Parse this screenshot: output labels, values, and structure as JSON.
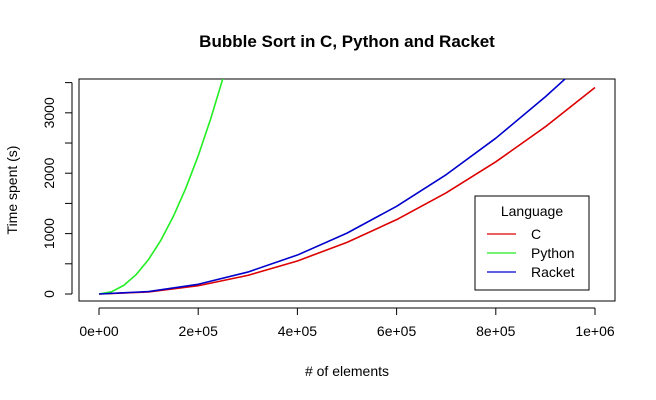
{
  "chart_data": {
    "type": "line",
    "title": "Bubble Sort in C, Python and Racket",
    "xlabel": "# of elements",
    "ylabel": "Time spent (s)",
    "xlim": [
      0,
      1000000
    ],
    "ylim": [
      0,
      3560
    ],
    "x_ticks": [
      0,
      200000,
      400000,
      600000,
      800000,
      1000000
    ],
    "x_tick_labels": [
      "0e+00",
      "2e+05",
      "4e+05",
      "6e+05",
      "8e+05",
      "1e+06"
    ],
    "y_ticks": [
      0,
      1000,
      2000,
      3000
    ],
    "y_tick_labels": [
      "0",
      "1000",
      "2000",
      "3000"
    ],
    "grid": false,
    "legend": {
      "title": "Language",
      "position": "bottom-right"
    },
    "series": [
      {
        "name": "C",
        "color": "#dd0000",
        "x": [
          0,
          100000,
          200000,
          300000,
          400000,
          500000,
          600000,
          700000,
          800000,
          900000,
          1000000
        ],
        "y": [
          0,
          34,
          137,
          308,
          547,
          855,
          1231,
          1676,
          2189,
          2770,
          3420
        ]
      },
      {
        "name": "Python",
        "color": "#22ee22",
        "x": [
          0,
          25000,
          50000,
          75000,
          100000,
          125000,
          150000,
          175000,
          200000,
          225000,
          250000
        ],
        "y": [
          0,
          36,
          143,
          322,
          572,
          894,
          1287,
          1752,
          2288,
          2896,
          3575
        ]
      },
      {
        "name": "Racket",
        "color": "#0000cc",
        "x": [
          0,
          100000,
          200000,
          300000,
          400000,
          500000,
          600000,
          700000,
          800000,
          900000,
          940000
        ],
        "y": [
          0,
          40,
          161,
          363,
          645,
          1008,
          1452,
          1976,
          2580,
          3266,
          3563
        ]
      }
    ]
  }
}
